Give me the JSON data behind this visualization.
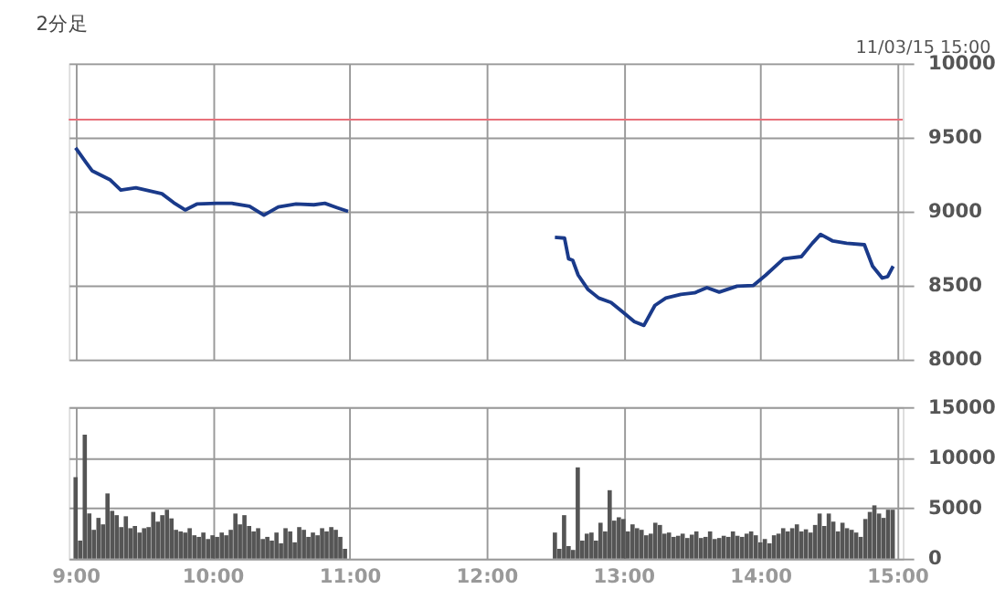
{
  "chart_data": [
    {
      "type": "line",
      "title": "2分足",
      "annotations": [
        "11/03/15 15:00"
      ],
      "x": [
        9,
        9.077,
        9.12,
        9.25,
        9.33,
        9.44,
        9.63,
        9.715,
        9.8,
        9.885,
        10.03,
        10.14,
        10.27,
        10.375,
        10.48,
        10.61,
        10.74,
        10.82,
        10.91,
        10.99,
        11.5,
        12.5,
        12.57,
        12.6,
        12.63,
        12.67,
        12.74,
        12.82,
        12.91,
        12.99,
        13.08,
        13.15,
        13.23,
        13.31,
        13.42,
        13.52,
        13.61,
        13.7,
        13.83,
        13.95,
        14.04,
        14.17,
        14.3,
        14.38,
        14.44,
        14.53,
        14.63,
        14.76,
        14.82,
        14.89,
        14.93,
        14.97
      ],
      "series": [
        {
          "color": "#1a3a8a",
          "values": [
            9430,
            9330,
            9275,
            9215,
            9145,
            9160,
            9120,
            9060,
            9010,
            9050,
            9055,
            9055,
            9035,
            8975,
            9030,
            9050,
            9045,
            9055,
            9025,
            9000,
            null,
            8825,
            8820,
            8680,
            8670,
            8570,
            8475,
            8415,
            8385,
            8325,
            8255,
            8230,
            8365,
            8415,
            8440,
            8450,
            8485,
            8455,
            8495,
            8500,
            8570,
            8680,
            8695,
            8785,
            8845,
            8800,
            8785,
            8775,
            8630,
            8550,
            8560,
            8630
          ]
        }
      ],
      "xlim": [
        8.95,
        15.04
      ],
      "xticks": [
        9,
        10,
        11,
        12,
        13,
        14,
        15
      ],
      "ylim": [
        8000,
        10000
      ],
      "yticks": [
        8000,
        8500,
        9000,
        9500,
        10000
      ],
      "ref_lines": [
        {
          "axis": "y",
          "value": 9620,
          "color": "#e8707a"
        }
      ],
      "grid": true,
      "tick_labels": "y"
    },
    {
      "type": "bar",
      "x": [
        9,
        9.033,
        9.067,
        9.1,
        9.133,
        9.167,
        9.2,
        9.233,
        9.267,
        9.3,
        9.333,
        9.367,
        9.4,
        9.433,
        9.467,
        9.5,
        9.533,
        9.567,
        9.6,
        9.633,
        9.667,
        9.7,
        9.733,
        9.767,
        9.8,
        9.833,
        9.867,
        9.9,
        9.933,
        9.967,
        10,
        10.033,
        10.067,
        10.1,
        10.133,
        10.167,
        10.2,
        10.233,
        10.267,
        10.3,
        10.333,
        10.367,
        10.4,
        10.433,
        10.467,
        10.5,
        10.533,
        10.567,
        10.6,
        10.633,
        10.667,
        10.7,
        10.733,
        10.767,
        10.8,
        10.833,
        10.867,
        10.9,
        10.933,
        10.967,
        12.5,
        12.533,
        12.567,
        12.6,
        12.633,
        12.667,
        12.7,
        12.733,
        12.767,
        12.8,
        12.833,
        12.867,
        12.9,
        12.933,
        12.967,
        13,
        13.033,
        13.067,
        13.1,
        13.133,
        13.167,
        13.2,
        13.233,
        13.267,
        13.3,
        13.333,
        13.367,
        13.4,
        13.433,
        13.467,
        13.5,
        13.533,
        13.567,
        13.6,
        13.633,
        13.667,
        13.7,
        13.733,
        13.767,
        13.8,
        13.833,
        13.867,
        13.9,
        13.933,
        13.967,
        14,
        14.033,
        14.067,
        14.1,
        14.133,
        14.167,
        14.2,
        14.233,
        14.267,
        14.3,
        14.333,
        14.367,
        14.4,
        14.433,
        14.467,
        14.5,
        14.533,
        14.567,
        14.6,
        14.633,
        14.667,
        14.7,
        14.733,
        14.767,
        14.8,
        14.833,
        14.867,
        14.9,
        14.933,
        14.967
      ],
      "series": [
        {
          "color": "#555555",
          "values": [
            8060,
            1780,
            12260,
            4460,
            2850,
            4030,
            3390,
            6450,
            4730,
            4300,
            3120,
            4190,
            3010,
            3230,
            2580,
            3010,
            3120,
            4620,
            3660,
            4300,
            4840,
            3980,
            2850,
            2690,
            2580,
            3010,
            2310,
            2150,
            2580,
            1940,
            2310,
            2150,
            2580,
            2310,
            2850,
            4460,
            3390,
            4300,
            3230,
            2690,
            3010,
            1940,
            2150,
            1780,
            2580,
            1510,
            3010,
            2690,
            1610,
            3120,
            2850,
            2150,
            2580,
            2310,
            3010,
            2690,
            3120,
            2850,
            2150,
            970,
            2580,
            970,
            4300,
            1240,
            860,
            9030,
            1780,
            2470,
            2580,
            1780,
            3550,
            2690,
            6770,
            3760,
            4090,
            3920,
            2690,
            3390,
            3010,
            2850,
            2310,
            2470,
            3550,
            3330,
            2470,
            2580,
            2150,
            2260,
            2470,
            2040,
            2370,
            2690,
            2040,
            2150,
            2690,
            1940,
            2040,
            2260,
            2150,
            2690,
            2260,
            2150,
            2470,
            2690,
            2310,
            1610,
            1940,
            1510,
            2310,
            2470,
            3010,
            2690,
            3010,
            3390,
            2690,
            2900,
            2580,
            3330,
            4460,
            3230,
            4460,
            3660,
            2690,
            3550,
            3010,
            2850,
            2580,
            2150,
            3920,
            4620,
            5270,
            4460,
            4030,
            4840,
            4840
          ]
        }
      ],
      "xlim": [
        8.95,
        15.04
      ],
      "xticks": [
        {
          "value": 9,
          "label": "9:00"
        },
        {
          "value": 10,
          "label": "10:00"
        },
        {
          "value": 11,
          "label": "11:00"
        },
        {
          "value": 12,
          "label": "12:00"
        },
        {
          "value": 13,
          "label": "13:00"
        },
        {
          "value": 14,
          "label": "14:00"
        },
        {
          "value": 15,
          "label": "15:00"
        }
      ],
      "ylim": [
        0,
        15000
      ],
      "yticks": [
        0,
        5000,
        10000,
        15000
      ],
      "grid": true
    }
  ]
}
